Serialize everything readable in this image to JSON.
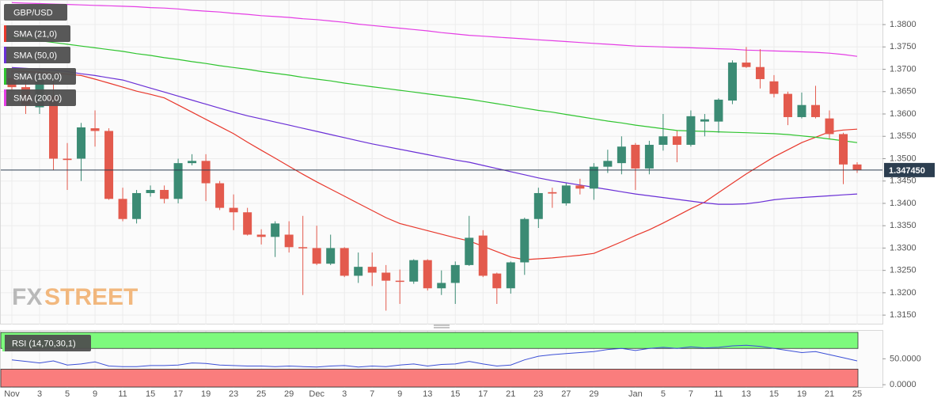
{
  "chart_data": [
    {
      "type": "candlestick",
      "title": "GBP/USD",
      "categories": [
        "Nov",
        null,
        "3",
        null,
        "5",
        null,
        "9",
        null,
        "11",
        null,
        "15",
        null,
        "17",
        null,
        "19",
        null,
        "23",
        null,
        "25",
        null,
        "29",
        null,
        "Dec",
        null,
        "3",
        null,
        "7",
        null,
        "9",
        null,
        "13",
        null,
        "15",
        null,
        "17",
        null,
        "21",
        null,
        "23",
        null,
        "27",
        null,
        "29",
        null,
        null,
        "Jan",
        null,
        "5",
        null,
        "7",
        null,
        "11",
        null,
        "13",
        null,
        "15",
        null,
        "19",
        null,
        "21",
        null,
        "25"
      ],
      "open": [
        1.368,
        1.366,
        1.3615,
        1.364,
        1.35,
        1.35,
        1.3568,
        1.3562,
        1.341,
        1.3365,
        1.3423,
        1.343,
        1.341,
        1.349,
        1.3495,
        1.3445,
        1.339,
        1.338,
        1.333,
        1.3325,
        1.333,
        1.3302,
        1.33,
        1.3265,
        1.33,
        1.3238,
        1.3258,
        1.3245,
        1.3227,
        1.3225,
        1.3273,
        1.321,
        1.3222,
        1.3262,
        1.3328,
        1.3243,
        1.321,
        1.3268,
        1.3365,
        1.3425,
        1.34,
        1.344,
        1.3433,
        1.3482,
        1.349,
        1.3531,
        1.3478,
        1.3531,
        1.355,
        1.3531,
        1.3583,
        1.3583,
        1.363,
        1.3715,
        1.3705,
        1.3673,
        1.3645,
        1.3593,
        1.362,
        1.359,
        1.3555,
        1.3487
      ],
      "high": [
        1.37,
        1.368,
        1.369,
        1.368,
        1.3535,
        1.358,
        1.3608,
        1.3568,
        1.3435,
        1.343,
        1.344,
        1.344,
        1.35,
        1.351,
        1.351,
        1.345,
        1.342,
        1.339,
        1.3342,
        1.336,
        1.336,
        1.3372,
        1.335,
        1.333,
        1.3302,
        1.329,
        1.329,
        1.3262,
        1.3252,
        1.3275,
        1.3275,
        1.325,
        1.327,
        1.3372,
        1.334,
        1.3245,
        1.327,
        1.3368,
        1.3435,
        1.3435,
        1.3445,
        1.3455,
        1.349,
        1.352,
        1.355,
        1.3535,
        1.354,
        1.36,
        1.3562,
        1.3608,
        1.36,
        1.3635,
        1.372,
        1.375,
        1.3745,
        1.3687,
        1.365,
        1.3648,
        1.3663,
        1.3608,
        1.3558,
        1.3492
      ],
      "low": [
        1.365,
        1.36,
        1.36,
        1.3475,
        1.343,
        1.345,
        1.3527,
        1.3408,
        1.336,
        1.3355,
        1.3415,
        1.34,
        1.34,
        1.3485,
        1.3405,
        1.3385,
        1.334,
        1.3328,
        1.3308,
        1.328,
        1.329,
        1.3195,
        1.3262,
        1.3262,
        1.3235,
        1.3222,
        1.3215,
        1.316,
        1.3175,
        1.322,
        1.3205,
        1.3195,
        1.3175,
        1.326,
        1.3235,
        1.3175,
        1.3198,
        1.324,
        1.3345,
        1.339,
        1.3395,
        1.342,
        1.3408,
        1.3468,
        1.3465,
        1.343,
        1.3465,
        1.3518,
        1.3492,
        1.3527,
        1.355,
        1.3558,
        1.3622,
        1.3703,
        1.3657,
        1.3637,
        1.3575,
        1.359,
        1.359,
        1.3545,
        1.3443,
        1.3468
      ],
      "close": [
        1.366,
        1.362,
        1.368,
        1.35,
        1.3497,
        1.357,
        1.3562,
        1.341,
        1.3365,
        1.3423,
        1.343,
        1.341,
        1.349,
        1.3495,
        1.3445,
        1.339,
        1.338,
        1.333,
        1.3325,
        1.3355,
        1.3302,
        1.33,
        1.3265,
        1.33,
        1.3238,
        1.3258,
        1.3245,
        1.3227,
        1.3225,
        1.3273,
        1.321,
        1.3222,
        1.3262,
        1.3323,
        1.3238,
        1.321,
        1.3268,
        1.3365,
        1.3423,
        1.3422,
        1.344,
        1.3433,
        1.3482,
        1.3495,
        1.3527,
        1.3478,
        1.3531,
        1.355,
        1.3531,
        1.3595,
        1.3588,
        1.3632,
        1.3715,
        1.3705,
        1.3678,
        1.3645,
        1.3593,
        1.362,
        1.3593,
        1.3555,
        1.3487,
        1.34745
      ],
      "up_color": "#3b8b74",
      "down_color": "#e35a4d",
      "series": [
        {
          "name": "SMA (21,0)",
          "color": "#e8382c",
          "values": [
            1.3696,
            1.3695,
            1.3693,
            1.3691,
            1.3689,
            1.3686,
            1.3678,
            1.3669,
            1.366,
            1.3651,
            1.3644,
            1.3636,
            1.362,
            1.3604,
            1.3588,
            1.3572,
            1.3556,
            1.3537,
            1.3519,
            1.3501,
            1.3483,
            1.3465,
            1.3448,
            1.3432,
            1.3416,
            1.34,
            1.3384,
            1.3368,
            1.3355,
            1.3347,
            1.3339,
            1.3331,
            1.3323,
            1.3316,
            1.3304,
            1.3292,
            1.328,
            1.3274,
            1.3276,
            1.3278,
            1.3281,
            1.3284,
            1.3288,
            1.3301,
            1.3314,
            1.3328,
            1.3341,
            1.3356,
            1.3372,
            1.3388,
            1.3403,
            1.3424,
            1.3445,
            1.3466,
            1.3485,
            1.3504,
            1.352,
            1.3536,
            1.3548,
            1.356,
            1.3564,
            1.3566
          ]
        },
        {
          "name": "SMA (50,0)",
          "color": "#6a2fd6",
          "values": [
            1.3704,
            1.3702,
            1.37,
            1.3698,
            1.3695,
            1.369,
            1.3686,
            1.3681,
            1.3676,
            1.3667,
            1.3658,
            1.3649,
            1.364,
            1.3631,
            1.3622,
            1.3613,
            1.3604,
            1.3596,
            1.3589,
            1.3582,
            1.3575,
            1.3568,
            1.3561,
            1.3554,
            1.3547,
            1.354,
            1.3533,
            1.3527,
            1.3521,
            1.3515,
            1.3509,
            1.3503,
            1.3497,
            1.3492,
            1.3485,
            1.3478,
            1.3471,
            1.3464,
            1.3457,
            1.3451,
            1.3446,
            1.3441,
            1.3436,
            1.3431,
            1.3426,
            1.3421,
            1.3417,
            1.3413,
            1.3409,
            1.3405,
            1.3401,
            1.3398,
            1.3398,
            1.3399,
            1.3403,
            1.3408,
            1.3411,
            1.3413,
            1.3415,
            1.3417,
            1.3419,
            1.3421
          ]
        },
        {
          "name": "SMA (100,0)",
          "color": "#2fc42f",
          "values": [
            1.3772,
            1.3768,
            1.3764,
            1.376,
            1.3756,
            1.3752,
            1.3748,
            1.3744,
            1.374,
            1.3735,
            1.3731,
            1.3726,
            1.3722,
            1.3717,
            1.3713,
            1.3708,
            1.3704,
            1.37,
            1.3695,
            1.3691,
            1.3687,
            1.3682,
            1.3678,
            1.3674,
            1.3669,
            1.3665,
            1.3661,
            1.3657,
            1.3653,
            1.3649,
            1.3645,
            1.3641,
            1.3637,
            1.3633,
            1.3628,
            1.3623,
            1.3618,
            1.3613,
            1.3608,
            1.3604,
            1.3599,
            1.3594,
            1.3589,
            1.3584,
            1.358,
            1.3575,
            1.3571,
            1.3567,
            1.3563,
            1.3562,
            1.3561,
            1.356,
            1.3559,
            1.3558,
            1.3557,
            1.3556,
            1.3554,
            1.3551,
            1.3548,
            1.3544,
            1.354,
            1.3536
          ]
        },
        {
          "name": "SMA (200,0)",
          "color": "#e43de4",
          "values": [
            1.3849,
            1.3848,
            1.3847,
            1.3846,
            1.3845,
            1.3844,
            1.3843,
            1.3842,
            1.3841,
            1.384,
            1.3838,
            1.3837,
            1.3835,
            1.3832,
            1.383,
            1.3828,
            1.3825,
            1.3823,
            1.382,
            1.3818,
            1.3816,
            1.3813,
            1.3811,
            1.3808,
            1.3805,
            1.3801,
            1.3798,
            1.3795,
            1.3792,
            1.3789,
            1.3786,
            1.3782,
            1.3779,
            1.3776,
            1.3774,
            1.3772,
            1.377,
            1.3768,
            1.3766,
            1.3764,
            1.3762,
            1.376,
            1.3758,
            1.3756,
            1.3754,
            1.3752,
            1.3751,
            1.375,
            1.3749,
            1.3748,
            1.3747,
            1.3746,
            1.3745,
            1.3743,
            1.3742,
            1.3741,
            1.374,
            1.3739,
            1.3738,
            1.3736,
            1.3733,
            1.3729
          ]
        }
      ],
      "ylim": [
        1.3129,
        1.3855
      ],
      "yticks": [
        {
          "value": 1.38,
          "label": "1.3800"
        },
        {
          "value": 1.375,
          "label": "1.3750"
        },
        {
          "value": 1.37,
          "label": "1.3700"
        },
        {
          "value": 1.365,
          "label": "1.3650"
        },
        {
          "value": 1.36,
          "label": "1.3600"
        },
        {
          "value": 1.355,
          "label": "1.3550"
        },
        {
          "value": 1.35,
          "label": "1.3500"
        },
        {
          "value": 1.345,
          "label": "1.3450"
        },
        {
          "value": 1.34,
          "label": "1.3400"
        },
        {
          "value": 1.335,
          "label": "1.3350"
        },
        {
          "value": 1.33,
          "label": "1.3300"
        },
        {
          "value": 1.325,
          "label": "1.3250"
        },
        {
          "value": 1.32,
          "label": "1.3200"
        },
        {
          "value": 1.315,
          "label": "1.3150"
        }
      ],
      "last_price": {
        "value": 1.34745,
        "label": "1.347450"
      },
      "grid": true
    },
    {
      "type": "line",
      "title": "RSI (14,70,30,1)",
      "color": "#3b4fd6",
      "values": [
        48,
        45,
        42,
        46,
        38,
        40,
        44,
        36,
        35,
        35,
        37,
        37,
        38,
        42,
        41,
        38,
        37,
        36,
        36,
        35,
        36,
        35,
        34,
        36,
        37,
        34,
        36,
        35,
        38,
        40,
        36,
        39,
        40,
        45,
        40,
        36,
        38,
        48,
        55,
        58,
        60,
        62,
        64,
        68,
        70,
        66,
        70,
        72,
        70,
        73,
        71,
        72,
        75,
        76,
        74,
        70,
        66,
        62,
        64,
        58,
        52,
        46
      ],
      "upper": 70,
      "lower": 30,
      "upper_color": "#7dfa7d",
      "lower_color": "#fa7d7d",
      "ylim": [
        -6,
        104
      ],
      "yticks": [
        {
          "value": 50,
          "label": "50.0000"
        },
        {
          "value": 0,
          "label": "0.0000"
        }
      ]
    }
  ],
  "watermark": {
    "part1": "FX",
    "part2": "STREET"
  }
}
